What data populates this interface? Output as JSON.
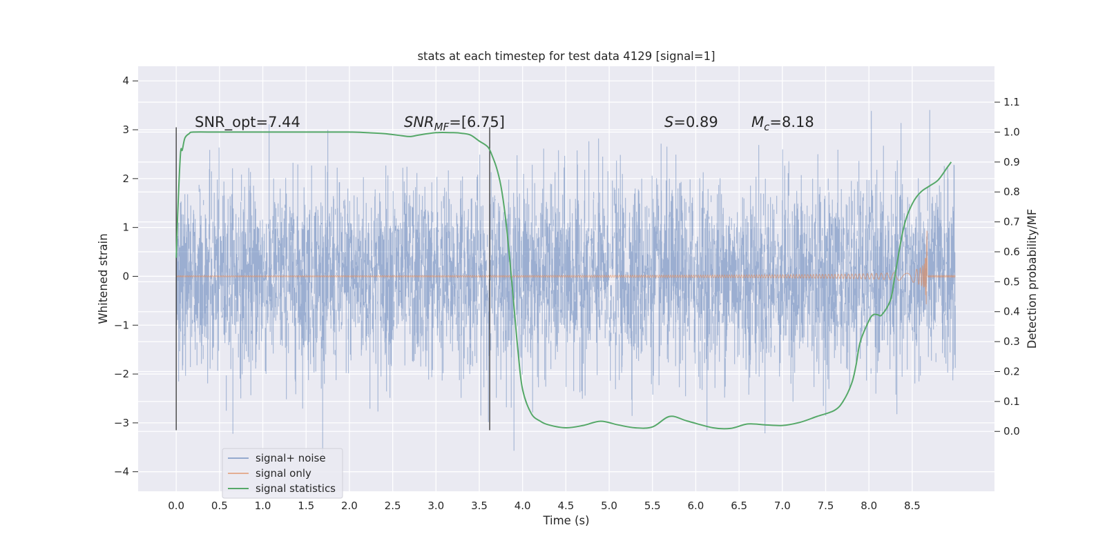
{
  "chart_data": {
    "type": "line",
    "title": "stats at each timestep for test data 4129 [signal=1]",
    "xlabel": "Time (s)",
    "ylabel": "Whitened strain",
    "y2label": "Detection probability/MF",
    "xlim": [
      -0.44,
      9.45
    ],
    "ylim": [
      -4.4,
      4.3
    ],
    "y2lim": [
      -0.2,
      1.22
    ],
    "grid": true,
    "x_ticks": [
      "0.0",
      "0.5",
      "1.0",
      "1.5",
      "2.0",
      "2.5",
      "3.0",
      "3.5",
      "4.0",
      "4.5",
      "5.0",
      "5.5",
      "6.0",
      "6.5",
      "7.0",
      "7.5",
      "8.0",
      "8.5"
    ],
    "y_ticks": [
      "4",
      "3",
      "2",
      "1",
      "0",
      "−1",
      "−2",
      "−3",
      "−4"
    ],
    "y2_ticks": [
      "1.1",
      "1.0",
      "0.9",
      "0.8",
      "0.7",
      "0.6",
      "0.5",
      "0.4",
      "0.3",
      "0.2",
      "0.1",
      "0.0"
    ],
    "vlines": [
      {
        "x": 0.0,
        "ymin": -3.15,
        "ymax": 3.05
      },
      {
        "x": 3.62,
        "ymin": -3.15,
        "ymax": 3.05
      }
    ],
    "annotations": {
      "snr_opt": "SNR_opt=7.44",
      "snr_mf_label": "SNR",
      "snr_mf_sub": "MF",
      "snr_mf_value": "=[6.75]",
      "s_label": "S",
      "s_value": "=0.89",
      "mc_label": "M",
      "mc_sub": "c",
      "mc_value": "=8.18"
    },
    "legend_position": "lower-left",
    "series": [
      {
        "name": "signal+ noise",
        "color": "#4c72b0",
        "noise_std": 0.95,
        "x_range": [
          0.0,
          9.0
        ]
      },
      {
        "name": "signal only",
        "color": "#dd8452",
        "chirp_end": 8.67,
        "peak_amplitude": 0.95
      },
      {
        "name": "signal statistics",
        "color": "#55a868",
        "axis": "right",
        "x": [
          0.0,
          0.02,
          0.05,
          0.07,
          0.1,
          0.15,
          0.2,
          0.5,
          1.0,
          1.5,
          2.0,
          2.2,
          2.4,
          2.6,
          2.7,
          2.8,
          3.0,
          3.2,
          3.3,
          3.4,
          3.5,
          3.6,
          3.65,
          3.7,
          3.75,
          3.8,
          3.85,
          3.9,
          3.95,
          4.0,
          4.1,
          4.2,
          4.3,
          4.5,
          4.7,
          4.9,
          5.1,
          5.3,
          5.5,
          5.7,
          5.9,
          6.2,
          6.4,
          6.6,
          6.8,
          7.0,
          7.2,
          7.4,
          7.6,
          7.7,
          7.8,
          7.85,
          7.9,
          8.0,
          8.05,
          8.1,
          8.15,
          8.25,
          8.3,
          8.4,
          8.5,
          8.6,
          8.7,
          8.8,
          8.9,
          8.95
        ],
        "y": [
          0.58,
          0.75,
          0.93,
          0.94,
          0.98,
          0.995,
          1.0,
          1.0,
          1.0,
          1.0,
          1.0,
          0.998,
          0.995,
          0.988,
          0.985,
          0.99,
          0.998,
          0.998,
          0.996,
          0.99,
          0.97,
          0.95,
          0.92,
          0.88,
          0.82,
          0.72,
          0.58,
          0.42,
          0.26,
          0.14,
          0.06,
          0.035,
          0.022,
          0.012,
          0.02,
          0.034,
          0.022,
          0.012,
          0.015,
          0.05,
          0.035,
          0.012,
          0.01,
          0.025,
          0.022,
          0.02,
          0.03,
          0.05,
          0.07,
          0.1,
          0.16,
          0.22,
          0.3,
          0.37,
          0.39,
          0.39,
          0.39,
          0.44,
          0.52,
          0.68,
          0.76,
          0.8,
          0.82,
          0.84,
          0.88,
          0.9
        ]
      }
    ]
  }
}
